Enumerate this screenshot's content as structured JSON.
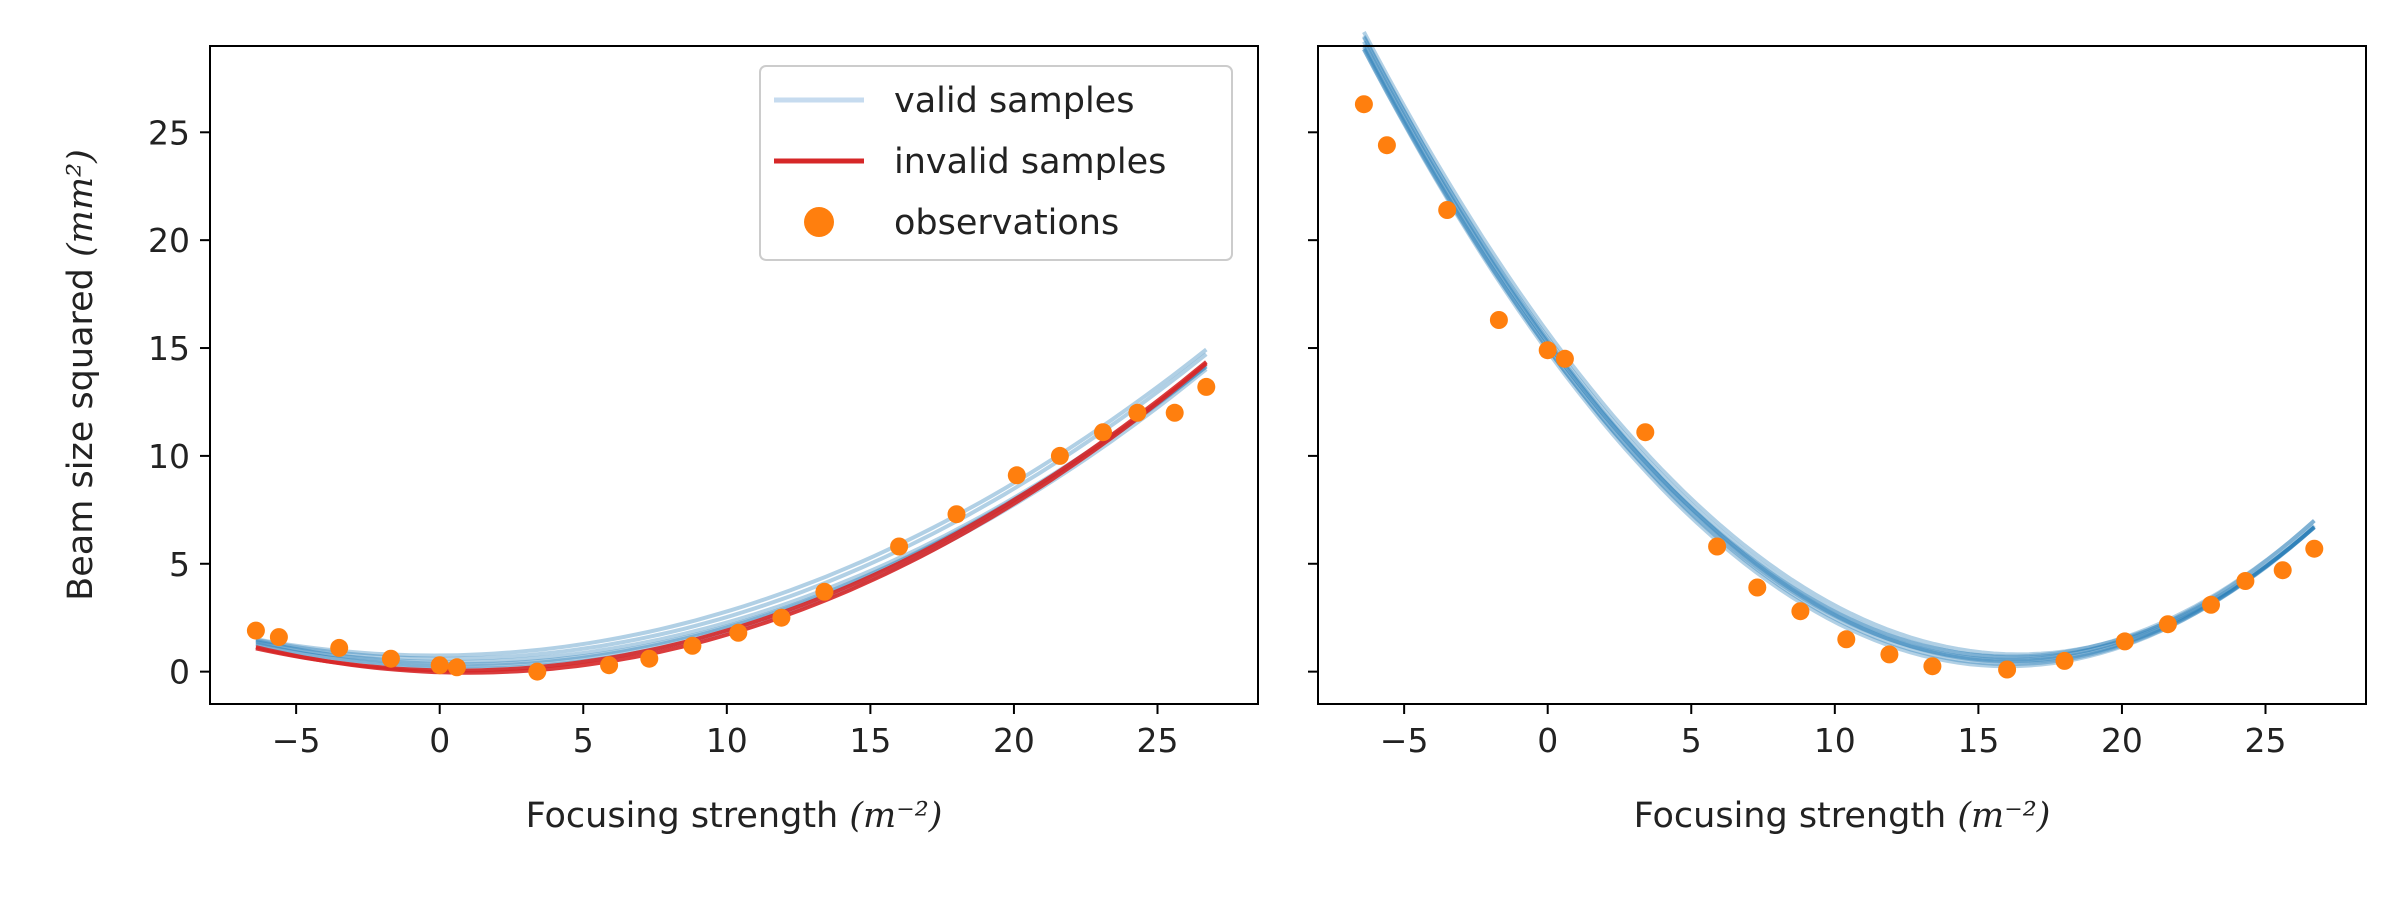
{
  "colors": {
    "valid": "#1f77b4",
    "valid_legend": "#c6dbef",
    "invalid": "#d62728",
    "observations": "#ff7f0e"
  },
  "legend": {
    "valid_label": "valid samples",
    "invalid_label": "invalid samples",
    "obs_label": "observations"
  },
  "chart_data": [
    {
      "type": "line",
      "xlabel": "Focusing strength",
      "xlabel_unit": "(m⁻²)",
      "ylabel": "Beam size squared",
      "ylabel_unit": "(mm²)",
      "xlim": [
        -8,
        28.5
      ],
      "ylim": [
        -1.5,
        29
      ],
      "xticks": [
        -5,
        0,
        5,
        10,
        15,
        20,
        25
      ],
      "yticks": [
        0,
        5,
        10,
        15,
        20,
        25
      ],
      "xtick_labels": [
        "−5",
        "0",
        "5",
        "10",
        "15",
        "20",
        "25"
      ],
      "ytick_labels": [
        "0",
        "5",
        "10",
        "15",
        "20",
        "25"
      ],
      "legend_position": "top-right",
      "observations": {
        "x": [
          -6.4,
          -5.6,
          -3.5,
          -1.7,
          0.0,
          0.6,
          3.4,
          5.9,
          7.3,
          8.8,
          10.4,
          11.9,
          13.4,
          16.0,
          18.0,
          20.1,
          21.6,
          23.1,
          24.3,
          25.6,
          26.7
        ],
        "y": [
          1.9,
          1.6,
          1.1,
          0.6,
          0.3,
          0.2,
          0.0,
          0.3,
          0.6,
          1.2,
          1.8,
          2.5,
          3.7,
          5.8,
          7.3,
          9.1,
          10.0,
          11.1,
          12.0,
          12.0,
          13.2
        ]
      },
      "valid_samples": [
        {
          "a": 0.0204,
          "x0": 0.6,
          "c": 0.25
        },
        {
          "a": 0.0198,
          "x0": 0.4,
          "c": 0.45
        },
        {
          "a": 0.0201,
          "x0": 0.2,
          "c": 0.6
        },
        {
          "a": 0.021,
          "x0": 1.0,
          "c": 0.15
        },
        {
          "a": 0.0196,
          "x0": -0.2,
          "c": 0.75
        },
        {
          "a": 0.0207,
          "x0": 0.8,
          "c": 0.35
        }
      ],
      "invalid_samples": [
        {
          "a": 0.0217,
          "x0": 1.0,
          "c": -0.05
        },
        {
          "a": 0.021,
          "x0": 0.6,
          "c": 0.05
        }
      ]
    },
    {
      "type": "line",
      "xlabel": "Focusing strength",
      "xlabel_unit": "(m⁻²)",
      "xlim": [
        -8,
        28.5
      ],
      "ylim": [
        -1.5,
        29
      ],
      "xticks": [
        -5,
        0,
        5,
        10,
        15,
        20,
        25
      ],
      "yticks": [
        0,
        5,
        10,
        15,
        20,
        25
      ],
      "xtick_labels": [
        "−5",
        "0",
        "5",
        "10",
        "15",
        "20",
        "25"
      ],
      "observations": {
        "x": [
          -6.4,
          -5.6,
          -3.5,
          -1.7,
          0.0,
          0.6,
          3.4,
          5.9,
          7.3,
          8.8,
          10.4,
          11.9,
          13.4,
          16.0,
          18.0,
          20.1,
          21.6,
          23.1,
          24.3,
          25.6,
          26.7
        ],
        "y": [
          26.3,
          24.4,
          21.4,
          16.3,
          14.9,
          14.5,
          11.1,
          5.8,
          3.9,
          2.8,
          1.5,
          0.8,
          0.25,
          0.1,
          0.5,
          1.4,
          2.2,
          3.1,
          4.2,
          4.7,
          5.7
        ]
      },
      "valid_samples": [
        {
          "a": 0.0562,
          "x0": 16.2,
          "c": 0.5
        },
        {
          "a": 0.0565,
          "x0": 16.1,
          "c": 0.35
        },
        {
          "a": 0.0558,
          "x0": 16.3,
          "c": 0.65
        },
        {
          "a": 0.057,
          "x0": 16.0,
          "c": 0.25
        },
        {
          "a": 0.0555,
          "x0": 16.4,
          "c": 0.8
        },
        {
          "a": 0.0568,
          "x0": 16.2,
          "c": 0.45
        },
        {
          "a": 0.056,
          "x0": 16.1,
          "c": 0.7
        },
        {
          "a": 0.0564,
          "x0": 16.0,
          "c": 0.55
        }
      ],
      "invalid_samples": []
    }
  ]
}
